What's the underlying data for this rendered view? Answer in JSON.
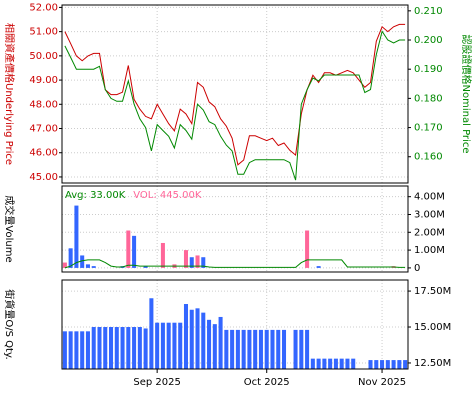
{
  "chart_data": [
    {
      "type": "line",
      "ylabel": "相關資產價格Underlying Price",
      "ylabel_color": "#cc0000",
      "y2label": "認股證價格Nominal Price",
      "y2label_color": "#008800",
      "ylim": [
        44.75,
        52.1
      ],
      "yticks": [
        {
          "value": 45,
          "label": "45.00"
        },
        {
          "value": 46,
          "label": "46.00"
        },
        {
          "value": 47,
          "label": "47.00"
        },
        {
          "value": 48,
          "label": "48.00"
        },
        {
          "value": 49,
          "label": "49.00"
        },
        {
          "value": 50,
          "label": "50.00"
        },
        {
          "value": 51,
          "label": "51.00"
        },
        {
          "value": 52,
          "label": "52.00"
        }
      ],
      "y2lim": [
        0.151,
        0.212
      ],
      "y2ticks": [
        {
          "value": 0.16,
          "label": "0.160"
        },
        {
          "value": 0.17,
          "label": "0.170"
        },
        {
          "value": 0.18,
          "label": "0.180"
        },
        {
          "value": 0.19,
          "label": "0.190"
        },
        {
          "value": 0.2,
          "label": "0.200"
        },
        {
          "value": 0.21,
          "label": "0.210"
        }
      ],
      "grid": true,
      "series": [
        {
          "color": "#cc0000",
          "axis": "y",
          "values": [
            51.0,
            50.5,
            50.0,
            49.8,
            50.0,
            50.1,
            50.1,
            48.6,
            48.4,
            48.4,
            48.5,
            49.6,
            48.2,
            47.8,
            47.5,
            47.4,
            48.0,
            47.6,
            47.2,
            46.9,
            47.8,
            47.6,
            47.2,
            48.9,
            48.7,
            48.1,
            47.9,
            47.4,
            47.1,
            46.6,
            45.5,
            45.7,
            46.7,
            46.7,
            46.6,
            46.5,
            46.6,
            46.3,
            46.4,
            46.1,
            45.9,
            47.6,
            48.6,
            49.2,
            48.9,
            49.3,
            49.3,
            49.2,
            49.3,
            49.4,
            49.3,
            49.0,
            48.7,
            48.9,
            50.6,
            51.2,
            51.0,
            51.2,
            51.3,
            51.3
          ]
        },
        {
          "color": "#008800",
          "axis": "y2",
          "values": [
            0.198,
            0.194,
            0.19,
            0.19,
            0.19,
            0.19,
            0.191,
            0.183,
            0.18,
            0.179,
            0.179,
            0.186,
            0.178,
            0.173,
            0.17,
            0.162,
            0.171,
            0.169,
            0.167,
            0.163,
            0.171,
            0.169,
            0.166,
            0.178,
            0.176,
            0.172,
            0.171,
            0.167,
            0.164,
            0.162,
            0.154,
            0.154,
            0.158,
            0.159,
            0.159,
            0.159,
            0.159,
            0.159,
            0.159,
            0.158,
            0.152,
            0.178,
            0.183,
            0.187,
            0.186,
            0.188,
            0.188,
            0.188,
            0.188,
            0.188,
            0.188,
            0.188,
            0.182,
            0.183,
            0.195,
            0.203,
            0.2,
            0.199,
            0.2,
            0.2
          ]
        }
      ]
    },
    {
      "type": "bar",
      "ylabel": "成交量Volume",
      "ylabel_color": "#000000",
      "ylim": [
        -230000,
        4600000
      ],
      "yticks": [
        0,
        {
          "value": 1000000,
          "label": "1.00M"
        },
        {
          "value": 2000000,
          "label": "2.00M"
        },
        {
          "value": 3000000,
          "label": "3.00M"
        },
        {
          "value": 4000000,
          "label": "4.00M"
        }
      ],
      "grid": true,
      "legend": [
        "Avg: 33.00K",
        "VOL: 445.00K"
      ],
      "legend_colors": [
        "#008800",
        "#ff6699"
      ],
      "values": [
        300000,
        1100000,
        3500000,
        700000,
        200000,
        100000,
        0,
        0,
        0,
        0,
        100000,
        2100000,
        1800000,
        0,
        100000,
        0,
        0,
        1400000,
        0,
        200000,
        0,
        1000000,
        600000,
        700000,
        600000,
        0,
        0,
        0,
        0,
        0,
        0,
        0,
        0,
        0,
        0,
        0,
        0,
        0,
        0,
        0,
        0,
        0,
        2100000,
        0,
        100000,
        0,
        0,
        0,
        0,
        0,
        0,
        0,
        0,
        0,
        0,
        0,
        0,
        100000,
        0,
        0
      ],
      "colors": [
        "#ff6699",
        "#3366ff",
        "#3366ff",
        "#3366ff",
        "#3366ff",
        "#3366ff",
        "#3366ff",
        "#3366ff",
        "#3366ff",
        "#3366ff",
        "#3366ff",
        "#ff6699",
        "#3366ff",
        "#3366ff",
        "#3366ff",
        "#3366ff",
        "#3366ff",
        "#ff6699",
        "#3366ff",
        "#ff6699",
        "#3366ff",
        "#ff6699",
        "#3366ff",
        "#ff6699",
        "#3366ff",
        "#3366ff",
        "#3366ff",
        "#3366ff",
        "#3366ff",
        "#3366ff",
        "#3366ff",
        "#3366ff",
        "#3366ff",
        "#3366ff",
        "#3366ff",
        "#3366ff",
        "#3366ff",
        "#3366ff",
        "#3366ff",
        "#3366ff",
        "#3366ff",
        "#3366ff",
        "#ff6699",
        "#3366ff",
        "#3366ff",
        "#3366ff",
        "#3366ff",
        "#3366ff",
        "#3366ff",
        "#3366ff",
        "#3366ff",
        "#3366ff",
        "#3366ff",
        "#3366ff",
        "#3366ff",
        "#3366ff",
        "#3366ff",
        "#ff6699",
        "#3366ff",
        "#3366ff"
      ],
      "line_color": "#008800",
      "line_values": [
        0,
        100000,
        300000,
        400000,
        450000,
        450000,
        450000,
        300000,
        100000,
        50000,
        50000,
        150000,
        150000,
        100000,
        100000,
        100000,
        100000,
        100000,
        100000,
        100000,
        100000,
        100000,
        100000,
        100000,
        100000,
        50000,
        30000,
        30000,
        30000,
        30000,
        30000,
        30000,
        30000,
        30000,
        30000,
        30000,
        30000,
        30000,
        30000,
        30000,
        30000,
        300000,
        450000,
        450000,
        450000,
        450000,
        450000,
        450000,
        450000,
        50000,
        50000,
        50000,
        50000,
        50000,
        50000,
        50000,
        50000,
        50000,
        30000,
        30000
      ]
    },
    {
      "type": "bar",
      "ylabel": "街貨量O/S Qty.",
      "ylabel_color": "#000000",
      "ylim": [
        12080000,
        18270000
      ],
      "yticks": [
        {
          "value": 12500000,
          "label": "12.50M"
        },
        {
          "value": 15000000,
          "label": "15.00M"
        },
        {
          "value": 17500000,
          "label": "17.50M"
        }
      ],
      "grid": true,
      "color": "#3366ff",
      "categories": [
        null,
        null,
        null,
        null,
        null,
        null,
        null,
        null,
        null,
        null,
        null,
        null,
        null,
        null,
        null,
        null,
        "Sep 2025",
        null,
        null,
        null,
        null,
        null,
        null,
        null,
        null,
        null,
        null,
        null,
        null,
        null,
        null,
        null,
        null,
        null,
        null,
        "Oct 2025",
        null,
        null,
        null,
        null,
        null,
        null,
        null,
        null,
        null,
        null,
        null,
        null,
        null,
        null,
        null,
        null,
        null,
        null,
        null,
        "Nov 2025",
        null,
        null,
        null,
        null
      ],
      "values": [
        14700000,
        14700000,
        14700000,
        14700000,
        14700000,
        15000000,
        15000000,
        15000000,
        15000000,
        15000000,
        15000000,
        15000000,
        15000000,
        15000000,
        14900000,
        17000000,
        15300000,
        15300000,
        15300000,
        15300000,
        15300000,
        16600000,
        16200000,
        16300000,
        16000000,
        15500000,
        15200000,
        15700000,
        14800000,
        14800000,
        14800000,
        14800000,
        14800000,
        14800000,
        14800000,
        14800000,
        14800000,
        14800000,
        14800000,
        null,
        14800000,
        14800000,
        14800000,
        12800000,
        12800000,
        12800000,
        12800000,
        12800000,
        12800000,
        12800000,
        12800000,
        null,
        null,
        12700000,
        12700000,
        12700000,
        12700000,
        12700000,
        12700000,
        12700000
      ]
    }
  ]
}
